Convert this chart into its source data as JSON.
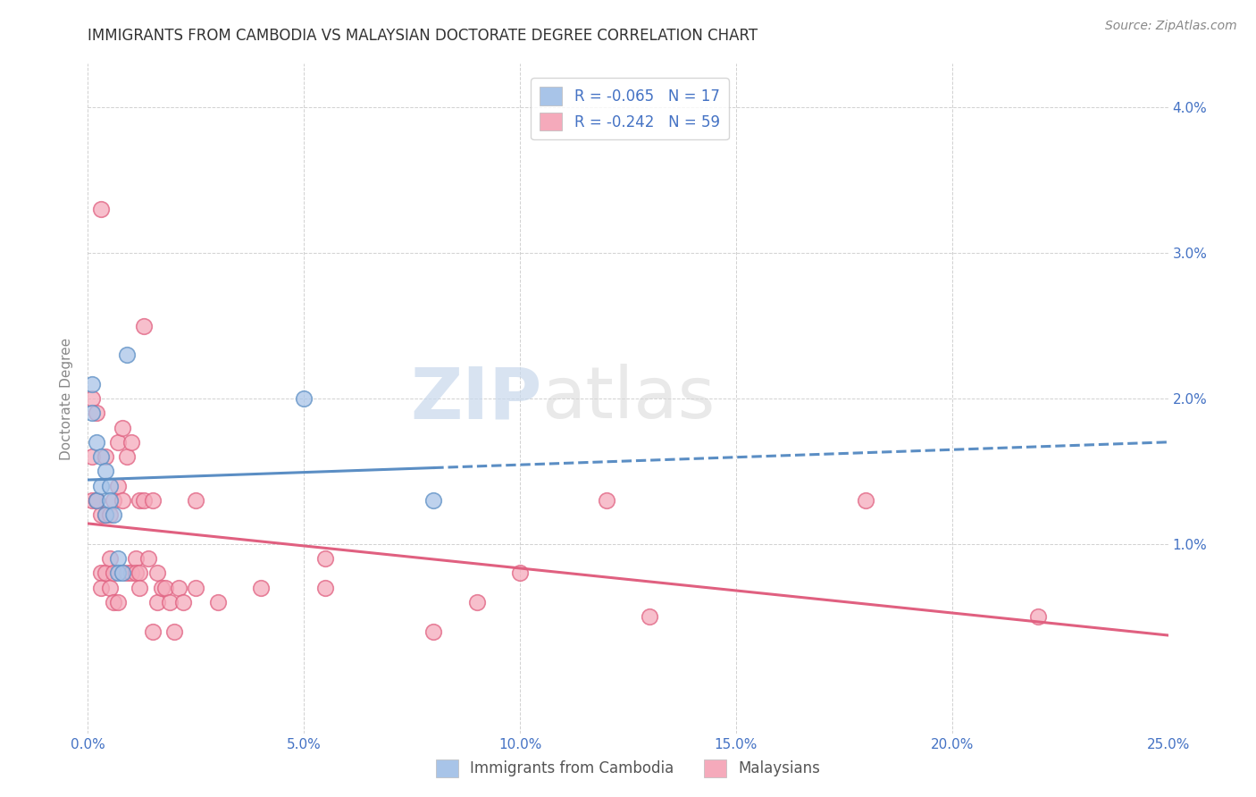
{
  "title": "IMMIGRANTS FROM CAMBODIA VS MALAYSIAN DOCTORATE DEGREE CORRELATION CHART",
  "source": "Source: ZipAtlas.com",
  "ylabel_left": "Doctorate Degree",
  "xlabel_ticks": [
    "0.0%",
    "5.0%",
    "10.0%",
    "15.0%",
    "20.0%",
    "25.0%"
  ],
  "xlabel_values": [
    0.0,
    0.05,
    0.1,
    0.15,
    0.2,
    0.25
  ],
  "ylabel_right_ticks": [
    "1.0%",
    "2.0%",
    "3.0%",
    "4.0%"
  ],
  "ylabel_right_values": [
    0.01,
    0.02,
    0.03,
    0.04
  ],
  "xmin": 0.0,
  "xmax": 0.25,
  "ymin": -0.003,
  "ymax": 0.043,
  "legend_entry1": "R = -0.065   N = 17",
  "legend_entry2": "R = -0.242   N = 59",
  "legend_label1": "Immigrants from Cambodia",
  "legend_label2": "Malaysians",
  "color_blue": "#a8c4e8",
  "color_pink": "#f5aabb",
  "color_blue_line": "#5b8ec4",
  "color_pink_line": "#e06080",
  "color_text_blue": "#4472c4",
  "watermark_zip": "ZIP",
  "watermark_atlas": "atlas",
  "blue_scatter_x": [
    0.001,
    0.001,
    0.002,
    0.002,
    0.003,
    0.003,
    0.004,
    0.004,
    0.005,
    0.005,
    0.006,
    0.007,
    0.007,
    0.008,
    0.009,
    0.05,
    0.08
  ],
  "blue_scatter_y": [
    0.019,
    0.021,
    0.017,
    0.013,
    0.016,
    0.014,
    0.015,
    0.012,
    0.014,
    0.013,
    0.012,
    0.009,
    0.008,
    0.008,
    0.023,
    0.02,
    0.013
  ],
  "pink_scatter_x": [
    0.001,
    0.001,
    0.001,
    0.002,
    0.002,
    0.002,
    0.003,
    0.003,
    0.003,
    0.003,
    0.004,
    0.004,
    0.004,
    0.005,
    0.005,
    0.005,
    0.006,
    0.006,
    0.006,
    0.007,
    0.007,
    0.007,
    0.008,
    0.008,
    0.009,
    0.009,
    0.01,
    0.01,
    0.011,
    0.011,
    0.012,
    0.012,
    0.012,
    0.013,
    0.013,
    0.014,
    0.015,
    0.015,
    0.016,
    0.016,
    0.017,
    0.018,
    0.019,
    0.02,
    0.021,
    0.022,
    0.025,
    0.025,
    0.03,
    0.04,
    0.055,
    0.055,
    0.08,
    0.09,
    0.1,
    0.12,
    0.13,
    0.18,
    0.22
  ],
  "pink_scatter_y": [
    0.013,
    0.016,
    0.02,
    0.013,
    0.013,
    0.019,
    0.012,
    0.008,
    0.007,
    0.033,
    0.008,
    0.012,
    0.016,
    0.012,
    0.009,
    0.007,
    0.013,
    0.008,
    0.006,
    0.017,
    0.014,
    0.006,
    0.018,
    0.013,
    0.016,
    0.008,
    0.017,
    0.008,
    0.009,
    0.008,
    0.013,
    0.008,
    0.007,
    0.013,
    0.025,
    0.009,
    0.013,
    0.004,
    0.008,
    0.006,
    0.007,
    0.007,
    0.006,
    0.004,
    0.007,
    0.006,
    0.007,
    0.013,
    0.006,
    0.007,
    0.007,
    0.009,
    0.004,
    0.006,
    0.008,
    0.013,
    0.005,
    0.013,
    0.005
  ]
}
